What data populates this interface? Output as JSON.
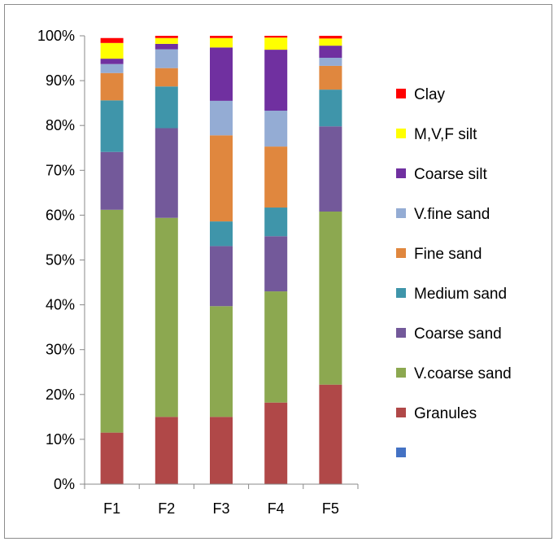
{
  "chart_data": {
    "type": "bar",
    "stacked": true,
    "normalized": true,
    "categories": [
      "F1",
      "F2",
      "F3",
      "F4",
      "F5"
    ],
    "ylim": [
      0,
      100
    ],
    "y_ticks": [
      "0%",
      "10%",
      "20%",
      "30%",
      "40%",
      "50%",
      "60%",
      "70%",
      "80%",
      "90%",
      "100%"
    ],
    "grid": false,
    "legend_position": "right",
    "series": [
      {
        "name": "",
        "color": "#4472c4",
        "values": [
          0,
          0,
          0,
          0,
          0
        ]
      },
      {
        "name": "Granules",
        "color": "#b04848",
        "values": [
          11.5,
          15.0,
          15.0,
          18.2,
          22.2
        ]
      },
      {
        "name": "V.coarse sand",
        "color": "#8ca850",
        "values": [
          49.7,
          44.4,
          24.7,
          24.8,
          38.6
        ]
      },
      {
        "name": "Coarse sand",
        "color": "#73599a",
        "values": [
          12.9,
          20.0,
          13.4,
          12.3,
          19.0
        ]
      },
      {
        "name": "Medium sand",
        "color": "#3f95aa",
        "values": [
          11.5,
          9.3,
          5.5,
          6.4,
          8.2
        ]
      },
      {
        "name": "Fine sand",
        "color": "#e0873e",
        "values": [
          6.1,
          4.1,
          19.2,
          13.6,
          5.3
        ]
      },
      {
        "name": "V.fine sand",
        "color": "#94acd4",
        "values": [
          2.0,
          4.2,
          7.7,
          8.0,
          1.8
        ]
      },
      {
        "name": "Coarse silt",
        "color": "#7030a0",
        "values": [
          1.2,
          1.2,
          11.9,
          13.6,
          2.7
        ]
      },
      {
        "name": "M,V,F silt",
        "color": "#ffff00",
        "values": [
          3.5,
          1.3,
          2.1,
          2.7,
          1.6
        ]
      },
      {
        "name": "Clay",
        "color": "#ff0000",
        "values": [
          1.1,
          0.5,
          0.5,
          0.4,
          0.6
        ]
      }
    ]
  }
}
